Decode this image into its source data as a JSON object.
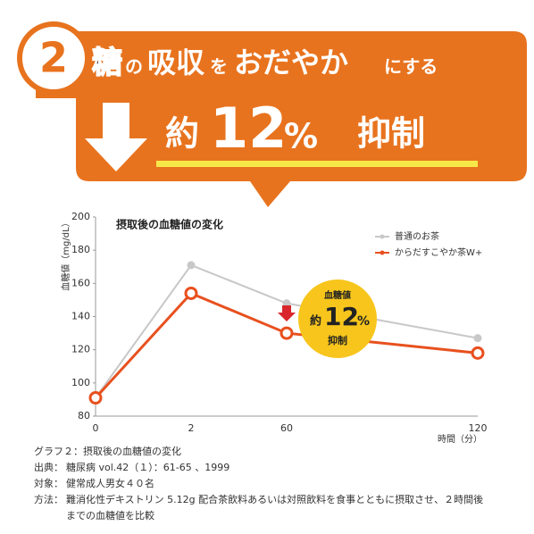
{
  "banner": {
    "number": "2",
    "line1": [
      "糖",
      "の",
      "吸収",
      "を",
      "おだやか",
      "にする"
    ],
    "line2": [
      "約",
      "12",
      "%",
      "抑制"
    ]
  },
  "chart_data": {
    "type": "line",
    "title": "摂取後の血糖値の変化",
    "y_label": "血糖値（mg/dL）",
    "x_label": "時間（分）",
    "categories": [
      "0",
      "2",
      "60",
      "120"
    ],
    "series": [
      {
        "name": "普通のお茶",
        "color": "#c8c8c8",
        "values": [
          91,
          171,
          148,
          127
        ]
      },
      {
        "name": "からだすこやか茶W+",
        "color": "#e8501e",
        "values": [
          91,
          154,
          130,
          118
        ]
      }
    ],
    "ylim": [
      80,
      200
    ],
    "yticks": [
      80,
      100,
      120,
      140,
      160,
      180,
      200
    ],
    "grid": false,
    "legend": "top-right",
    "annotation": [
      "血糖値",
      "約",
      "12",
      "%",
      "抑制"
    ]
  },
  "notes": {
    "caption": "グラフ２：摂取後の血糖値の変化",
    "items": [
      {
        "label": "出典：",
        "text": "糖尿病 vol.42（１）：61-65 、1999"
      },
      {
        "label": "対象：",
        "text": "健常成人男女４０名"
      },
      {
        "label": "方法：",
        "text": "難消化性デキストリン 5.12g 配合茶飲料あるいは対照飲料を食事とともに摂取させ、２時間後"
      },
      {
        "label": null,
        "text": "までの血糖値を比較"
      }
    ]
  }
}
